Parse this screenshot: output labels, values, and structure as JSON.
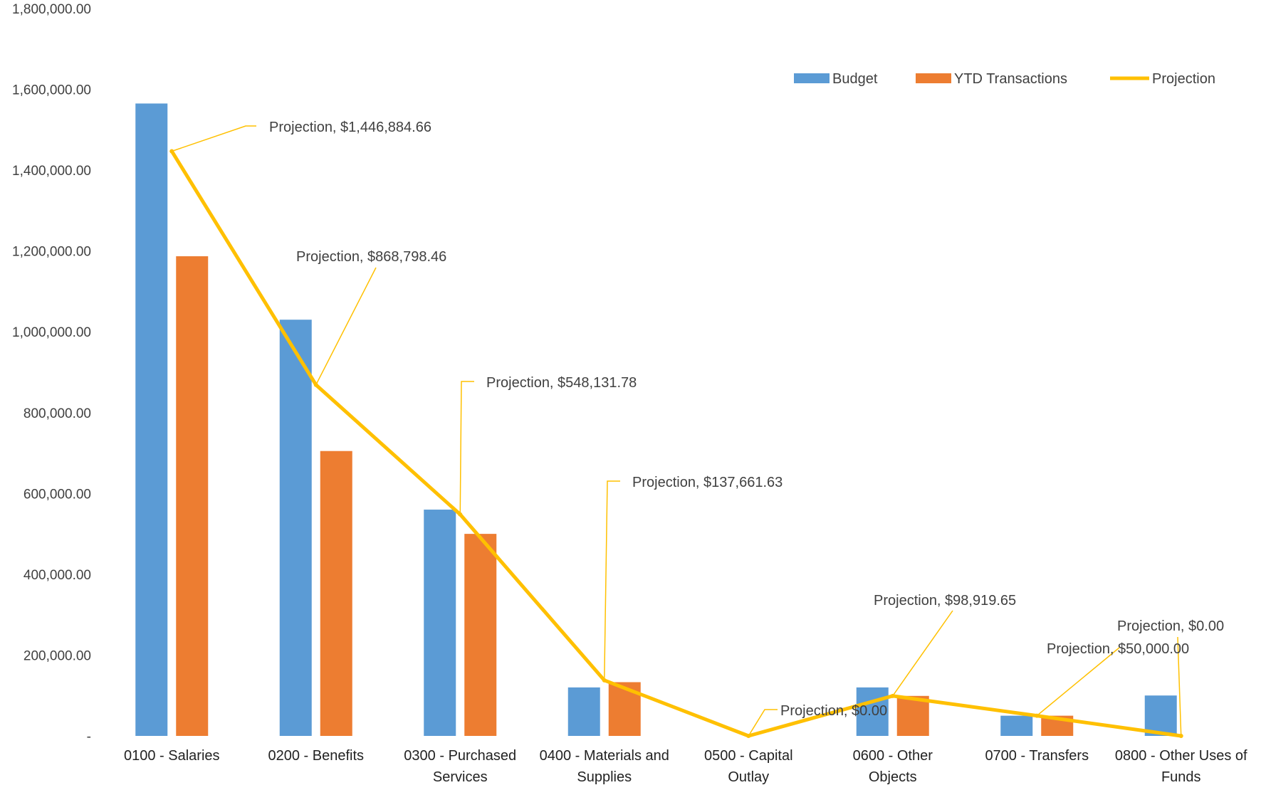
{
  "chart_data": {
    "type": "bar",
    "categories": [
      "0100 - Salaries",
      "0200 - Benefits",
      "0300 - Purchased Services",
      "0400 - Materials and Supplies",
      "0500 - Capital Outlay",
      "0600 - Other Objects",
      "0700 - Transfers",
      "0800 - Other Uses of Funds"
    ],
    "category_lines": [
      [
        "0100 - Salaries"
      ],
      [
        "0200 - Benefits"
      ],
      [
        "0300 - Purchased",
        "Services"
      ],
      [
        "0400 - Materials and",
        "Supplies"
      ],
      [
        "0500 - Capital",
        "Outlay"
      ],
      [
        "0600 - Other",
        "Objects"
      ],
      [
        "0700 - Transfers"
      ],
      [
        "0800 - Other Uses of",
        "Funds"
      ]
    ],
    "series": [
      {
        "name": "Budget",
        "type": "bar",
        "color": "#5B9BD5",
        "values": [
          1565000,
          1030000,
          560000,
          120000,
          0,
          120000,
          50000,
          100000
        ]
      },
      {
        "name": "YTD Transactions",
        "type": "bar",
        "color": "#ED7D31",
        "values": [
          1187000,
          705000,
          500000,
          133000,
          0,
          99000,
          50000,
          0
        ]
      },
      {
        "name": "Projection",
        "type": "line",
        "color": "#FFC000",
        "values": [
          1446884.66,
          868798.46,
          548131.78,
          137661.63,
          0,
          98919.65,
          50000,
          0
        ]
      }
    ],
    "data_labels": [
      "Projection, $1,446,884.66",
      "Projection, $868,798.46",
      "Projection, $548,131.78",
      "Projection, $137,661.63",
      "Projection, $0.00",
      "Projection, $98,919.65",
      "Projection, $50,000.00",
      "Projection, $0.00"
    ],
    "y_ticks": [
      {
        "value": 0,
        "label": "-"
      },
      {
        "value": 200000,
        "label": "200,000.00"
      },
      {
        "value": 400000,
        "label": "400,000.00"
      },
      {
        "value": 600000,
        "label": "600,000.00"
      },
      {
        "value": 800000,
        "label": "800,000.00"
      },
      {
        "value": 1000000,
        "label": "1,000,000.00"
      },
      {
        "value": 1200000,
        "label": "1,200,000.00"
      },
      {
        "value": 1400000,
        "label": "1,400,000.00"
      },
      {
        "value": 1600000,
        "label": "1,600,000.00"
      },
      {
        "value": 1800000,
        "label": "1,800,000.00"
      }
    ],
    "ylim": [
      0,
      1800000
    ],
    "grid": false,
    "legend_position": "top-right"
  }
}
